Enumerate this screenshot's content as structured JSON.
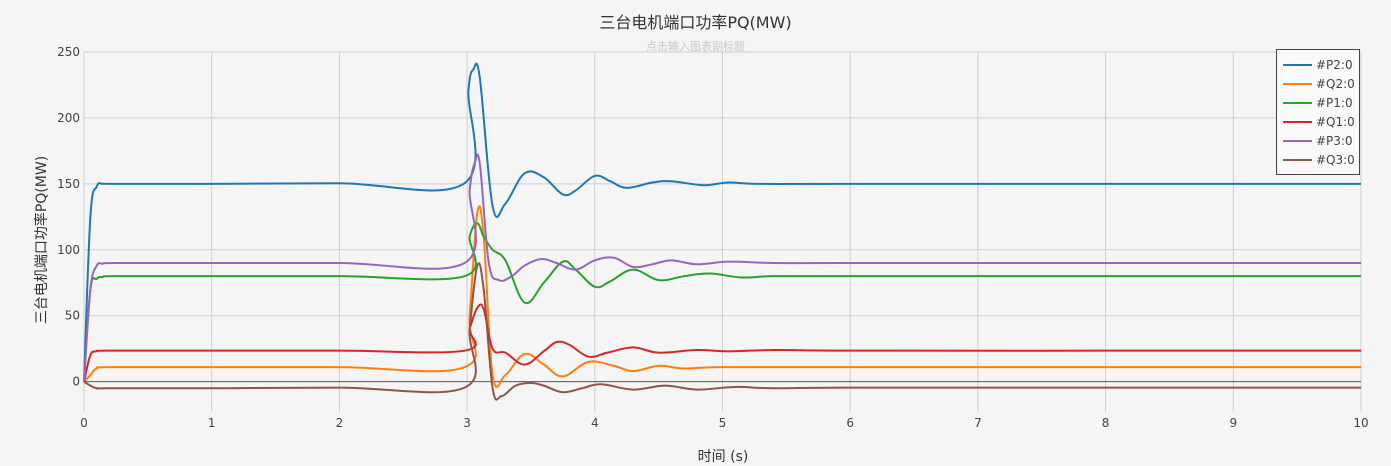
{
  "chart_data": {
    "type": "line",
    "title": "三台电机端口功率PQ(MW)",
    "subtitle": "点击输入图表副标题",
    "xlabel": "时间 (s)",
    "ylabel": "三台电机端口功率PQ(MW)",
    "xlim": [
      0,
      10
    ],
    "ylim": [
      -23,
      250
    ],
    "xticks": [
      0,
      1,
      2,
      3,
      4,
      5,
      6,
      7,
      8,
      9,
      10
    ],
    "yticks": [
      0,
      50,
      100,
      150,
      200,
      250
    ],
    "grid": true,
    "legend_position": "top-right",
    "series": [
      {
        "name": "#P2:0",
        "color": "#1f77b4",
        "x": [
          0,
          0.05,
          0.1,
          0.15,
          0.25,
          1,
          2,
          2.98,
          3.01,
          3.05,
          3.1,
          3.2,
          3.3,
          3.45,
          3.6,
          3.75,
          3.85,
          4.0,
          4.12,
          4.25,
          4.45,
          4.6,
          4.85,
          5.05,
          5.3,
          6,
          8,
          10
        ],
        "y": [
          0,
          125,
          148,
          150,
          150,
          150,
          150.5,
          150.5,
          220,
          237,
          230,
          133,
          135,
          158,
          155,
          142,
          145,
          156,
          152,
          147,
          151,
          152,
          149,
          151,
          150,
          150,
          150,
          150
        ]
      },
      {
        "name": "#Q2:0",
        "color": "#ff7f0e",
        "x": [
          0,
          0.05,
          0.1,
          0.2,
          1,
          2,
          2.98,
          3.02,
          3.08,
          3.13,
          3.2,
          3.3,
          3.45,
          3.6,
          3.75,
          3.95,
          4.15,
          4.3,
          4.5,
          4.7,
          5.0,
          6,
          8,
          10
        ],
        "y": [
          0,
          5,
          10,
          11,
          11,
          11,
          11,
          50,
          128,
          110,
          5,
          5,
          21,
          13,
          4,
          15,
          12,
          8,
          12,
          10,
          11,
          11,
          11,
          11
        ]
      },
      {
        "name": "#P1:0",
        "color": "#2ca02c",
        "x": [
          0,
          0.05,
          0.1,
          0.15,
          0.25,
          1,
          2,
          2.98,
          3.02,
          3.08,
          3.13,
          3.2,
          3.3,
          3.45,
          3.6,
          3.75,
          3.85,
          4.0,
          4.12,
          4.3,
          4.5,
          4.7,
          4.9,
          5.15,
          5.4,
          6,
          8,
          10
        ],
        "y": [
          0,
          70,
          78,
          79.5,
          80,
          80,
          80,
          80,
          110,
          120,
          110,
          100,
          92,
          60,
          75,
          91,
          85,
          72,
          76,
          85,
          77,
          80,
          82,
          79,
          80,
          80,
          80,
          80
        ]
      },
      {
        "name": "#Q1:0",
        "color": "#d62728",
        "x": [
          0,
          0.05,
          0.1,
          0.2,
          1,
          2,
          2.98,
          3.02,
          3.08,
          3.13,
          3.2,
          3.3,
          3.45,
          3.6,
          3.7,
          3.8,
          3.95,
          4.1,
          4.3,
          4.5,
          4.8,
          5.05,
          5.4,
          6,
          8,
          10
        ],
        "y": [
          0,
          20,
          23,
          23.5,
          23.5,
          23.5,
          23.5,
          40,
          56,
          55,
          25,
          22,
          13,
          23,
          30,
          28,
          19,
          22,
          26,
          22,
          24,
          23,
          24,
          23.5,
          23.5,
          23.5
        ]
      },
      {
        "name": "#P3:0",
        "color": "#9467bd",
        "x": [
          0,
          0.05,
          0.1,
          0.15,
          0.25,
          1,
          2,
          2.98,
          3.02,
          3.06,
          3.1,
          3.17,
          3.25,
          3.35,
          3.45,
          3.58,
          3.7,
          3.85,
          4.0,
          4.15,
          4.3,
          4.45,
          4.6,
          4.8,
          5.05,
          5.4,
          6,
          8,
          10
        ],
        "y": [
          0,
          70,
          88,
          89.5,
          90,
          90,
          90,
          90,
          145,
          166,
          165,
          90,
          77,
          80,
          88,
          93,
          90,
          85,
          92,
          94,
          87,
          89,
          92,
          89,
          91,
          90,
          90,
          90,
          90
        ]
      },
      {
        "name": "#Q3:0",
        "color": "#8c564b",
        "x": [
          0,
          0.05,
          0.1,
          0.2,
          1,
          2,
          2.98,
          3.02,
          3.08,
          3.13,
          3.2,
          3.27,
          3.38,
          3.5,
          3.6,
          3.75,
          3.9,
          4.05,
          4.3,
          4.55,
          4.8,
          5.1,
          5.4,
          6,
          8,
          10
        ],
        "y": [
          0,
          -3,
          -5,
          -5,
          -5,
          -4.5,
          -4.5,
          40,
          88,
          70,
          -5,
          -11,
          -3,
          -1,
          -3,
          -8,
          -5,
          -2,
          -6,
          -3,
          -6,
          -4,
          -5,
          -4.5,
          -4.5,
          -4.5
        ]
      }
    ]
  }
}
